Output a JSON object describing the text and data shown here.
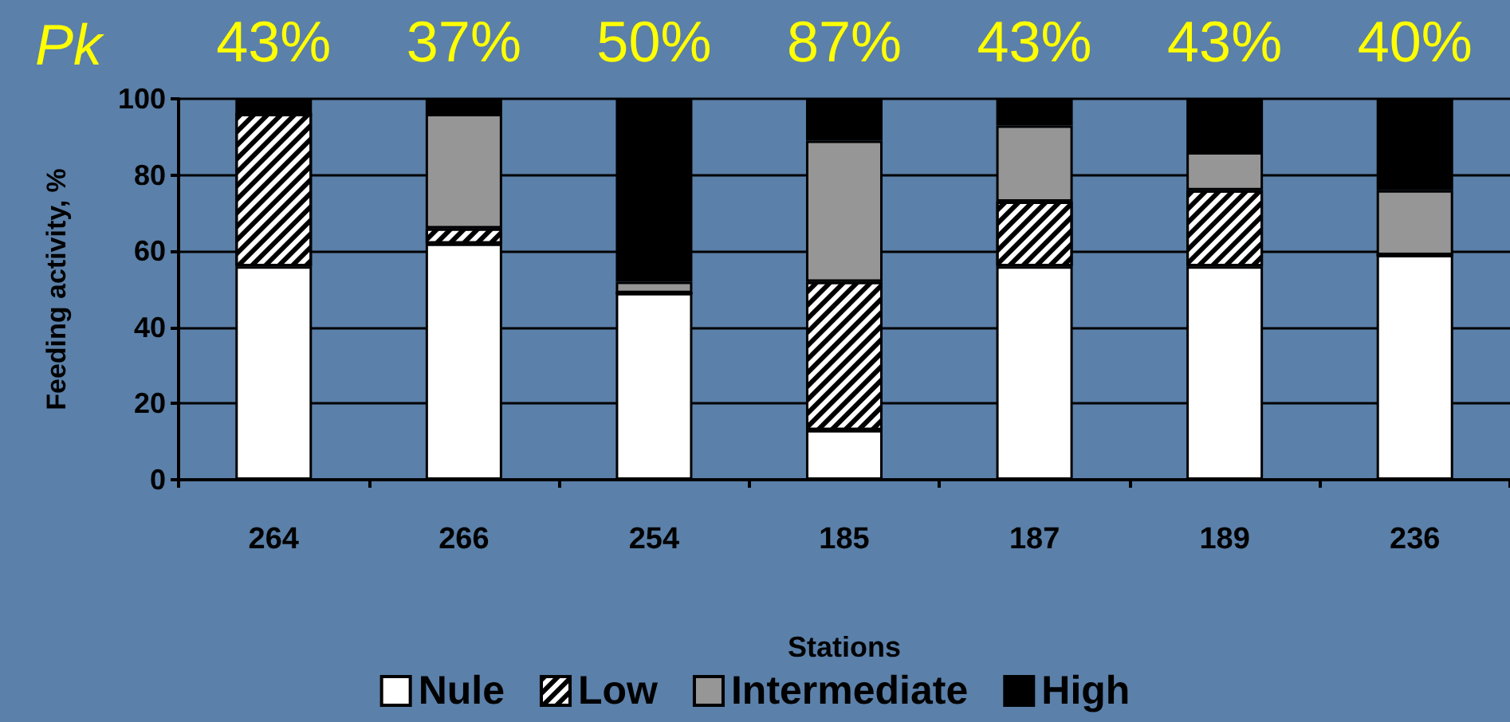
{
  "chart_data": {
    "type": "bar",
    "stacked": true,
    "xlabel": "Stations",
    "ylabel": "Feeding activity, %",
    "categories": [
      "264",
      "266",
      "254",
      "185",
      "187",
      "189",
      "236"
    ],
    "series": [
      {
        "name": "Nule",
        "color": "#ffffff",
        "values": [
          56,
          62,
          49,
          13,
          56,
          56,
          59
        ]
      },
      {
        "name": "Low",
        "color": "#ffffff",
        "values": [
          40,
          4,
          0,
          39,
          17,
          20,
          0
        ]
      },
      {
        "name": "Intermediate",
        "color": "#969696",
        "values": [
          0,
          30,
          3,
          37,
          20,
          10,
          17
        ]
      },
      {
        "name": "High",
        "color": "#000000",
        "values": [
          4,
          4,
          48,
          11,
          7,
          14,
          24
        ]
      }
    ],
    "ylim": [
      0,
      100
    ],
    "yticks": [
      0,
      20,
      40,
      60,
      80,
      100
    ],
    "grid": "y",
    "legend": "bottom",
    "annotations": [
      "Pk",
      "43%",
      "37%",
      "50%",
      "87%",
      "43%",
      "43%",
      "40%"
    ]
  }
}
